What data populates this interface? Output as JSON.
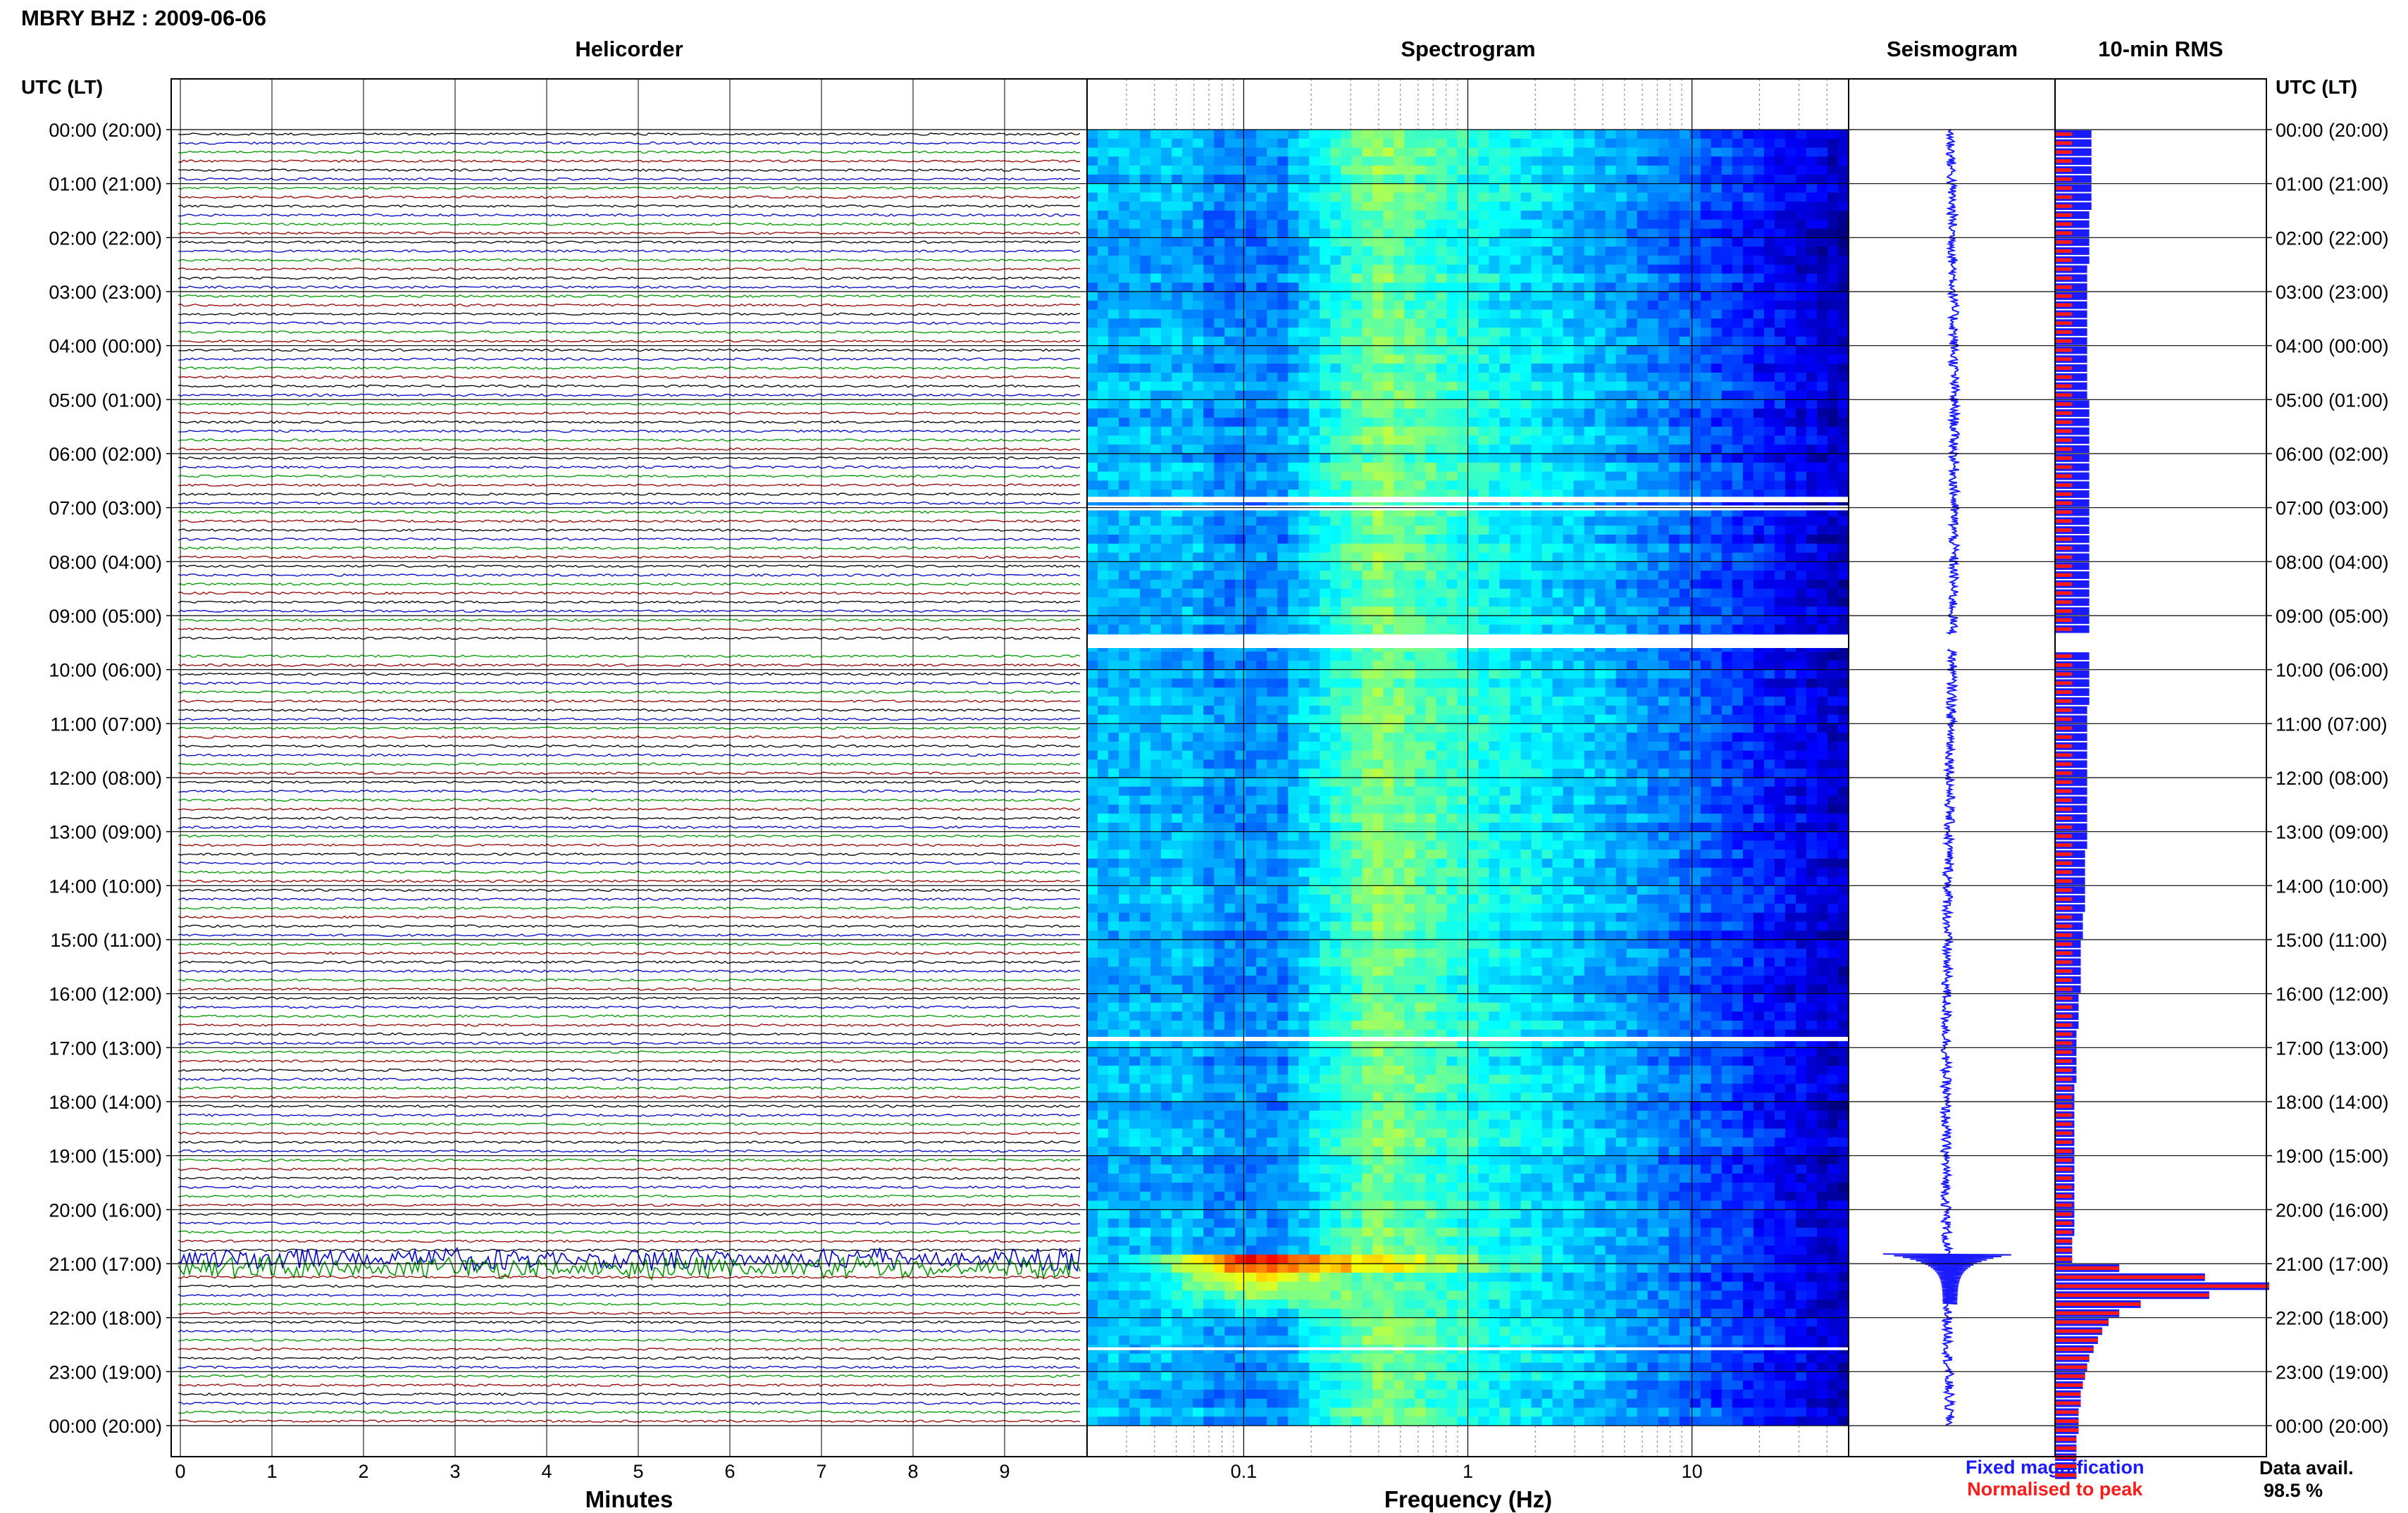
{
  "header": {
    "station_title": "MBRY BHZ : 2009-06-06",
    "utc_label_left": "UTC (LT)",
    "utc_label_right": "UTC (LT)"
  },
  "panels": {
    "helicorder": "Helicorder",
    "spectrogram": "Spectrogram",
    "seismogram": "Seismogram",
    "rms": "10-min RMS"
  },
  "axes": {
    "minutes_label": "Minutes",
    "minutes_ticks": [
      "0",
      "1",
      "2",
      "3",
      "4",
      "5",
      "6",
      "7",
      "8",
      "9"
    ],
    "frequency_label": "Frequency (Hz)",
    "frequency_ticks": [
      "0.1",
      "1",
      "10"
    ]
  },
  "time_labels": [
    "00:00 (20:00)",
    "01:00 (21:00)",
    "02:00 (22:00)",
    "03:00 (23:00)",
    "04:00 (00:00)",
    "05:00 (01:00)",
    "06:00 (02:00)",
    "07:00 (03:00)",
    "08:00 (04:00)",
    "09:00 (05:00)",
    "10:00 (06:00)",
    "11:00 (07:00)",
    "12:00 (08:00)",
    "13:00 (09:00)",
    "14:00 (10:00)",
    "15:00 (11:00)",
    "16:00 (12:00)",
    "17:00 (13:00)",
    "18:00 (14:00)",
    "19:00 (15:00)",
    "20:00 (16:00)",
    "21:00 (17:00)",
    "22:00 (18:00)",
    "23:00 (19:00)",
    "00:00 (20:00)"
  ],
  "legend": {
    "fixed_label": "Fixed magnification",
    "normalised_label": "Normalised to peak",
    "fixed_color": "#1a1aff",
    "normalised_color": "#ff1a1a"
  },
  "data_availability": {
    "label": "Data avail.",
    "value": "98.5 %"
  },
  "chart_data": [
    {
      "type": "line",
      "panel": "helicorder",
      "x_unit": "minutes",
      "xlim": [
        0,
        10
      ],
      "rows_per_hour": 6,
      "trace_colors": [
        "#000000",
        "#0000cc",
        "#009900",
        "#990000"
      ],
      "gap_hours": [
        9.35,
        9.6
      ],
      "event_hour_range": [
        20.7,
        21.05
      ]
    },
    {
      "type": "heatmap",
      "panel": "spectrogram",
      "x_scale": "log",
      "xlim": [
        0.02,
        50
      ],
      "ylim_hours": [
        0,
        24
      ],
      "gap_hours": [
        [
          6.8,
          6.9
        ],
        [
          6.96,
          7.05
        ],
        [
          9.35,
          9.6
        ],
        [
          16.8,
          16.88
        ],
        [
          22.55,
          22.59
        ]
      ],
      "event_hour": 20.9,
      "colormap": [
        "#000080",
        "#0000ff",
        "#0080ff",
        "#00ffff",
        "#80ff80",
        "#ffff00",
        "#ff8000",
        "#ff0000",
        "#800000"
      ]
    },
    {
      "type": "line",
      "panel": "seismogram",
      "gap_hours": [
        9.35,
        9.6
      ],
      "event_hour": 20.9
    },
    {
      "type": "bar",
      "panel": "rms",
      "bins_per_hour": 6,
      "missing_bins": [
        56,
        57
      ],
      "series": [
        {
          "name": "Fixed magnification",
          "values": [
            0.17,
            0.17,
            0.17,
            0.17,
            0.17,
            0.17,
            0.17,
            0.17,
            0.17,
            0.16,
            0.16,
            0.16,
            0.16,
            0.16,
            0.16,
            0.15,
            0.15,
            0.15,
            0.15,
            0.15,
            0.15,
            0.15,
            0.15,
            0.15,
            0.15,
            0.15,
            0.15,
            0.15,
            0.15,
            0.15,
            0.16,
            0.16,
            0.16,
            0.16,
            0.16,
            0.16,
            0.16,
            0.16,
            0.16,
            0.16,
            0.16,
            0.16,
            0.16,
            0.16,
            0.16,
            0.16,
            0.16,
            0.16,
            0.16,
            0.16,
            0.16,
            0.16,
            0.16,
            0.16,
            0.16,
            0.16,
            0,
            0,
            0.16,
            0.16,
            0.16,
            0.16,
            0.16,
            0.16,
            0.15,
            0.15,
            0.15,
            0.15,
            0.15,
            0.15,
            0.15,
            0.15,
            0.15,
            0.15,
            0.15,
            0.15,
            0.15,
            0.15,
            0.15,
            0.15,
            0.14,
            0.14,
            0.14,
            0.14,
            0.14,
            0.14,
            0.14,
            0.13,
            0.13,
            0.13,
            0.12,
            0.12,
            0.12,
            0.12,
            0.12,
            0.12,
            0.11,
            0.11,
            0.11,
            0.11,
            0.1,
            0.1,
            0.1,
            0.1,
            0.1,
            0.1,
            0.09,
            0.09,
            0.09,
            0.09,
            0.09,
            0.09,
            0.09,
            0.09,
            0.09,
            0.09,
            0.09,
            0.09,
            0.09,
            0.09,
            0.09,
            0.09,
            0.09,
            0.08,
            0.08,
            0.08,
            0.3,
            0.7,
            1.0,
            0.72,
            0.4,
            0.3,
            0.25,
            0.22,
            0.2,
            0.18,
            0.16,
            0.15,
            0.14,
            0.13,
            0.12,
            0.12,
            0.11,
            0.11,
            0.11,
            0.1,
            0.1,
            0.1,
            0.1,
            0.1
          ]
        },
        {
          "name": "Normalised to peak",
          "values": [
            0.08,
            0.08,
            0.08,
            0.08,
            0.08,
            0.08,
            0.08,
            0.08,
            0.08,
            0.08,
            0.08,
            0.08,
            0.08,
            0.08,
            0.08,
            0.08,
            0.08,
            0.08,
            0.08,
            0.08,
            0.08,
            0.08,
            0.08,
            0.08,
            0.08,
            0.08,
            0.08,
            0.08,
            0.08,
            0.08,
            0.08,
            0.08,
            0.08,
            0.08,
            0.08,
            0.08,
            0.08,
            0.08,
            0.08,
            0.08,
            0.08,
            0.08,
            0.08,
            0.08,
            0.08,
            0.08,
            0.08,
            0.08,
            0.08,
            0.08,
            0.08,
            0.08,
            0.08,
            0.08,
            0.08,
            0.08,
            0,
            0,
            0.08,
            0.08,
            0.08,
            0.08,
            0.08,
            0.08,
            0.08,
            0.08,
            0.08,
            0.08,
            0.08,
            0.08,
            0.08,
            0.08,
            0.08,
            0.08,
            0.08,
            0.08,
            0.08,
            0.08,
            0.08,
            0.08,
            0.08,
            0.08,
            0.08,
            0.08,
            0.08,
            0.08,
            0.08,
            0.08,
            0.08,
            0.08,
            0.08,
            0.08,
            0.08,
            0.08,
            0.08,
            0.08,
            0.08,
            0.08,
            0.08,
            0.08,
            0.08,
            0.08,
            0.08,
            0.08,
            0.08,
            0.08,
            0.08,
            0.08,
            0.08,
            0.08,
            0.08,
            0.08,
            0.08,
            0.08,
            0.08,
            0.08,
            0.08,
            0.08,
            0.08,
            0.08,
            0.08,
            0.08,
            0.08,
            0.08,
            0.08,
            0.08,
            0.3,
            0.7,
            1.0,
            0.72,
            0.4,
            0.3,
            0.25,
            0.22,
            0.2,
            0.18,
            0.16,
            0.15,
            0.14,
            0.13,
            0.12,
            0.12,
            0.11,
            0.11,
            0.11,
            0.1,
            0.1,
            0.1,
            0.1,
            0.1
          ]
        }
      ]
    }
  ]
}
